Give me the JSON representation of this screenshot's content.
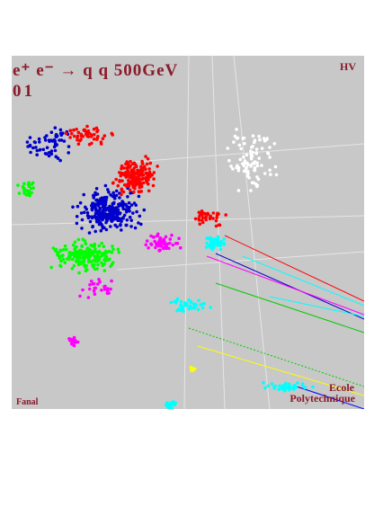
{
  "header": {
    "title": "e⁺ e⁻ → q q 500GeV",
    "event": "01",
    "tag": "HV"
  },
  "footer": {
    "left": "Fanal",
    "logo_line1": "Ecole",
    "logo_line2": "Polytechnique"
  }
}
